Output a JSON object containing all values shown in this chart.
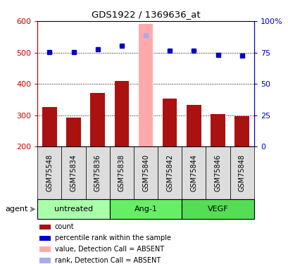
{
  "title": "GDS1922 / 1369636_at",
  "samples": [
    "GSM75548",
    "GSM75834",
    "GSM75836",
    "GSM75838",
    "GSM75840",
    "GSM75842",
    "GSM75844",
    "GSM75846",
    "GSM75848"
  ],
  "bar_values": [
    325,
    292,
    372,
    410,
    590,
    352,
    332,
    304,
    297
  ],
  "bar_absent": [
    false,
    false,
    false,
    false,
    true,
    false,
    false,
    false,
    false
  ],
  "percentile_values": [
    75.25,
    75.25,
    77.75,
    80.25,
    88.5,
    76.25,
    76.25,
    73.25,
    72.5
  ],
  "percentile_absent": [
    false,
    false,
    false,
    false,
    true,
    false,
    false,
    false,
    false
  ],
  "bar_color": "#aa1111",
  "bar_absent_color": "#ffaaaa",
  "percentile_color": "#0000cc",
  "percentile_absent_color": "#aaaaee",
  "ylim_left": [
    200,
    600
  ],
  "ylim_right": [
    0,
    100
  ],
  "yticks_left": [
    200,
    300,
    400,
    500,
    600
  ],
  "yticks_right": [
    0,
    25,
    50,
    75,
    100
  ],
  "groups": [
    {
      "label": "untreated",
      "indices": [
        0,
        1,
        2
      ],
      "color": "#aaffaa"
    },
    {
      "label": "Ang-1",
      "indices": [
        3,
        4,
        5
      ],
      "color": "#66ee66"
    },
    {
      "label": "VEGF",
      "indices": [
        6,
        7,
        8
      ],
      "color": "#55dd55"
    }
  ],
  "agent_label": "agent",
  "left_axis_color": "#cc0000",
  "right_axis_color": "#0000cc",
  "sample_box_color": "#dddddd",
  "background_color": "#ffffff"
}
